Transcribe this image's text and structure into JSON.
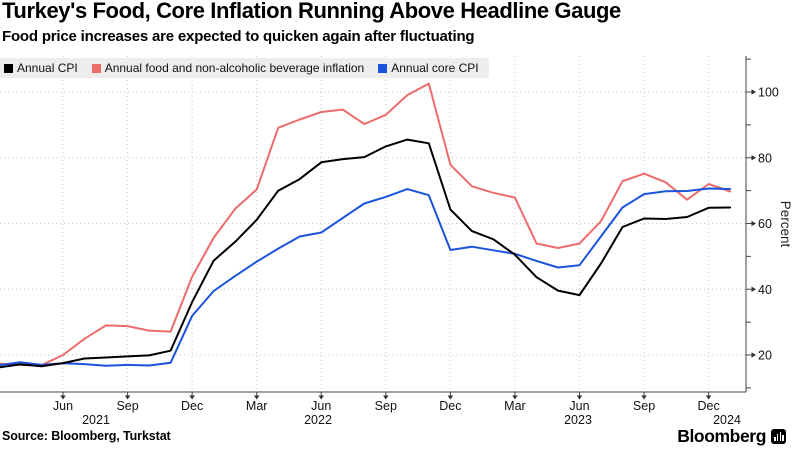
{
  "footer": {
    "source": "Source: Bloomberg, Turkstat",
    "brand": "Bloomberg"
  },
  "chart_data": {
    "type": "line",
    "title": "Turkey's Food, Core Inflation Running Above Headline Gauge",
    "subtitle": "Food price increases are expected to quicken again after fluctuating",
    "ylabel": "Percent",
    "ylim": [
      9,
      104
    ],
    "y_ticks": [
      20,
      40,
      60,
      80,
      100
    ],
    "y_minor_ticks": [
      10,
      30,
      50,
      70,
      90,
      110
    ],
    "grid": "dotted",
    "legend_position": "top",
    "x_months": [
      "Mar 2021",
      "Apr 2021",
      "May 2021",
      "Jun 2021",
      "Jul 2021",
      "Aug 2021",
      "Sep 2021",
      "Oct 2021",
      "Nov 2021",
      "Dec 2021",
      "Jan 2022",
      "Feb 2022",
      "Mar 2022",
      "Apr 2022",
      "May 2022",
      "Jun 2022",
      "Jul 2022",
      "Aug 2022",
      "Sep 2022",
      "Oct 2022",
      "Nov 2022",
      "Dec 2022",
      "Jan 2023",
      "Feb 2023",
      "Mar 2023",
      "Apr 2023",
      "May 2023",
      "Jun 2023",
      "Jul 2023",
      "Aug 2023",
      "Sep 2023",
      "Oct 2023",
      "Nov 2023",
      "Dec 2023",
      "Jan 2024"
    ],
    "x_ticks": [
      {
        "i": 3,
        "label": "Jun"
      },
      {
        "i": 6,
        "label": "Sep"
      },
      {
        "i": 9,
        "label": "Dec"
      },
      {
        "i": 12,
        "label": "Mar"
      },
      {
        "i": 15,
        "label": "Jun"
      },
      {
        "i": 18,
        "label": "Sep"
      },
      {
        "i": 21,
        "label": "Dec"
      },
      {
        "i": 24,
        "label": "Mar"
      },
      {
        "i": 27,
        "label": "Jun"
      },
      {
        "i": 30,
        "label": "Sep"
      },
      {
        "i": 33,
        "label": "Dec"
      }
    ],
    "year_labels": [
      "2021",
      "2022",
      "2023",
      "2024"
    ],
    "series": [
      {
        "name": "Annual CPI",
        "color": "#000000",
        "values": [
          16.19,
          17.14,
          16.59,
          17.53,
          18.95,
          19.25,
          19.58,
          19.89,
          21.31,
          36.08,
          48.69,
          54.44,
          61.14,
          69.97,
          73.5,
          78.62,
          79.6,
          80.21,
          83.45,
          85.51,
          84.39,
          64.27,
          57.68,
          55.18,
          50.51,
          43.68,
          39.59,
          38.21,
          47.83,
          58.94,
          61.53,
          61.36,
          61.98,
          64.77,
          64.86
        ]
      },
      {
        "name": "Annual food and non-alcoholic beverage inflation",
        "color": "#ec6c6c",
        "values": [
          17.4,
          17.0,
          16.9,
          19.99,
          24.92,
          29.0,
          28.79,
          27.41,
          27.11,
          43.8,
          55.61,
          64.47,
          70.33,
          89.1,
          91.63,
          93.93,
          94.65,
          90.25,
          93.05,
          99.05,
          102.55,
          77.87,
          71.32,
          69.33,
          67.89,
          53.92,
          52.54,
          53.92,
          60.71,
          72.86,
          75.14,
          72.55,
          67.23,
          72.01,
          69.72
        ]
      },
      {
        "name": "Annual core CPI",
        "color": "#1c53dc",
        "values": [
          16.88,
          17.77,
          16.99,
          17.47,
          17.22,
          16.76,
          16.98,
          16.82,
          17.62,
          31.88,
          39.45,
          44.05,
          48.39,
          52.35,
          56.04,
          57.26,
          61.69,
          66.09,
          68.09,
          70.45,
          68.62,
          51.93,
          52.94,
          51.85,
          50.79,
          48.61,
          46.62,
          47.33,
          56.09,
          64.86,
          68.93,
          69.8,
          69.89,
          70.64,
          70.48
        ]
      }
    ]
  }
}
